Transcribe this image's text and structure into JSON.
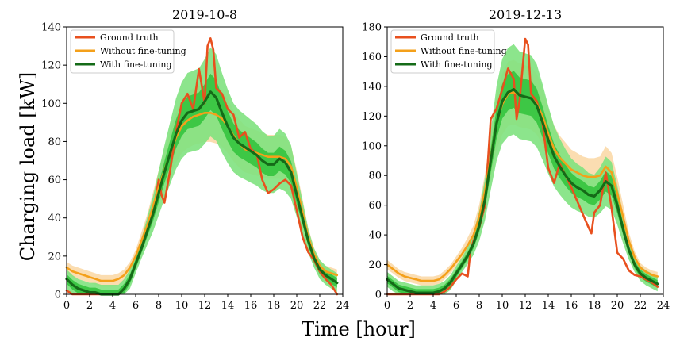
{
  "figure": {
    "ylabel": "Charging load [kW]",
    "xlabel": "Time [hour]"
  },
  "legend_entries": [
    "Ground truth",
    "Without fine-tuning",
    "With fine-tuning"
  ],
  "colors": {
    "ground_truth": "#e8501e",
    "without_ft_line": "#f4a01a",
    "without_ft_band": "#fbd9a9",
    "with_ft_line": "#156b18",
    "with_ft_band_outer": "#7fe27f",
    "with_ft_band_inner": "#2fc23a"
  },
  "chart_data": [
    {
      "type": "line",
      "title": "2019-10-8",
      "xlabel": "Time [hour]",
      "ylabel": "Charging load [kW]",
      "xlim": [
        0,
        24
      ],
      "ylim": [
        0,
        140
      ],
      "xticks": [
        0,
        2,
        4,
        6,
        8,
        10,
        12,
        14,
        16,
        18,
        20,
        22,
        24
      ],
      "yticks": [
        0,
        20,
        40,
        60,
        80,
        100,
        120,
        140
      ],
      "legend_position": "top-left",
      "series": [
        {
          "name": "Ground truth",
          "x": [
            0,
            0.5,
            1,
            1.5,
            2,
            2.5,
            3,
            3.5,
            4,
            4.5,
            5,
            5.5,
            6,
            6.5,
            7,
            7.5,
            8,
            8.25,
            8.5,
            9,
            9.5,
            10,
            10.5,
            11,
            11.5,
            12,
            12.25,
            12.5,
            12.75,
            13,
            13.5,
            14,
            14.5,
            15,
            15.5,
            16,
            16.5,
            17,
            17.5,
            18,
            18.5,
            19,
            19.5,
            20,
            20.5,
            21,
            21.5,
            22,
            22.5,
            23,
            23.5
          ],
          "y": [
            2,
            0,
            0,
            0,
            0,
            0,
            0,
            0,
            0,
            0,
            3,
            8,
            16,
            24,
            33,
            42,
            60,
            52,
            48,
            65,
            85,
            100,
            105,
            97,
            118,
            100,
            130,
            134,
            128,
            108,
            105,
            97,
            94,
            82,
            85,
            76,
            74,
            60,
            53,
            55,
            58,
            60,
            57,
            44,
            30,
            22,
            18,
            12,
            8,
            5,
            0
          ]
        },
        {
          "name": "Without fine-tuning",
          "x": [
            0,
            0.5,
            1,
            1.5,
            2,
            2.5,
            3,
            3.5,
            4,
            4.5,
            5,
            5.5,
            6,
            6.5,
            7,
            7.5,
            8,
            8.5,
            9,
            9.5,
            10,
            10.5,
            11,
            11.5,
            12,
            12.5,
            13,
            13.5,
            14,
            14.5,
            15,
            15.5,
            16,
            16.5,
            17,
            17.5,
            18,
            18.5,
            19,
            19.5,
            20,
            20.5,
            21,
            21.5,
            22,
            22.5,
            23,
            23.5
          ],
          "y": [
            14,
            12,
            11,
            10,
            9,
            8,
            7,
            7,
            7,
            8,
            10,
            14,
            20,
            28,
            36,
            46,
            56,
            65,
            74,
            82,
            88,
            91,
            93,
            94,
            95,
            95,
            94,
            92,
            88,
            83,
            79,
            76,
            75,
            74,
            73,
            72,
            72,
            72,
            71,
            67,
            56,
            43,
            30,
            21,
            15,
            12,
            11,
            10
          ]
        },
        {
          "name": "With fine-tuning",
          "x": [
            0,
            0.5,
            1,
            1.5,
            2,
            2.5,
            3,
            3.5,
            4,
            4.5,
            5,
            5.5,
            6,
            6.5,
            7,
            7.5,
            8,
            8.5,
            9,
            9.5,
            10,
            10.5,
            11,
            11.5,
            12,
            12.5,
            13,
            13.5,
            14,
            14.5,
            15,
            15.5,
            16,
            16.5,
            17,
            17.5,
            18,
            18.5,
            19,
            19.5,
            20,
            20.5,
            21,
            21.5,
            22,
            22.5,
            23,
            23.5
          ],
          "y": [
            8,
            5,
            3,
            2,
            1,
            1,
            0,
            0,
            0,
            0,
            3,
            8,
            16,
            24,
            33,
            42,
            53,
            64,
            74,
            84,
            91,
            95,
            96,
            97,
            101,
            106,
            103,
            95,
            88,
            82,
            79,
            77,
            75,
            73,
            70,
            68,
            68,
            71,
            69,
            64,
            52,
            40,
            28,
            19,
            13,
            10,
            8,
            6
          ]
        }
      ]
    },
    {
      "type": "line",
      "title": "2019-12-13",
      "xlabel": "Time [hour]",
      "ylabel": "Charging load [kW]",
      "xlim": [
        0,
        24
      ],
      "ylim": [
        0,
        180
      ],
      "xticks": [
        0,
        2,
        4,
        6,
        8,
        10,
        12,
        14,
        16,
        18,
        20,
        22,
        24
      ],
      "yticks": [
        0,
        20,
        40,
        60,
        80,
        100,
        120,
        140,
        160,
        180
      ],
      "legend_position": "top-left",
      "series": [
        {
          "name": "Ground truth",
          "x": [
            0,
            0.5,
            1,
            1.5,
            2,
            2.5,
            3,
            3.5,
            4,
            4.5,
            5,
            5.5,
            6,
            6.5,
            7,
            7.25,
            7.5,
            8,
            8.5,
            9,
            9.5,
            10,
            10.5,
            11,
            11.25,
            11.5,
            12,
            12.25,
            12.5,
            13,
            13.5,
            14,
            14.5,
            15,
            15.5,
            16,
            16.5,
            17,
            17.5,
            17.75,
            18,
            18.5,
            19,
            19.5,
            20,
            20.5,
            21,
            21.5,
            22,
            22.5,
            23,
            23.5
          ],
          "y": [
            0,
            0,
            0,
            0,
            0,
            0,
            0,
            0,
            0,
            0,
            2,
            5,
            10,
            14,
            12,
            30,
            36,
            45,
            60,
            118,
            125,
            138,
            152,
            145,
            118,
            130,
            172,
            168,
            135,
            130,
            115,
            85,
            75,
            88,
            80,
            72,
            63,
            54,
            45,
            41,
            55,
            60,
            82,
            58,
            28,
            24,
            16,
            13,
            12,
            10,
            8,
            5
          ]
        },
        {
          "name": "Without fine-tuning",
          "x": [
            0,
            0.5,
            1,
            1.5,
            2,
            2.5,
            3,
            3.5,
            4,
            4.5,
            5,
            5.5,
            6,
            6.5,
            7,
            7.5,
            8,
            8.5,
            9,
            9.5,
            10,
            10.5,
            11,
            11.5,
            12,
            12.5,
            13,
            13.5,
            14,
            14.5,
            15,
            15.5,
            16,
            16.5,
            17,
            17.5,
            18,
            18.5,
            19,
            19.5,
            20,
            20.5,
            21,
            21.5,
            22,
            22.5,
            23,
            23.5
          ],
          "y": [
            20,
            17,
            14,
            12,
            11,
            10,
            9,
            9,
            9,
            10,
            13,
            17,
            22,
            27,
            33,
            40,
            52,
            70,
            92,
            115,
            128,
            135,
            136,
            134,
            133,
            132,
            128,
            120,
            108,
            98,
            92,
            88,
            84,
            82,
            80,
            79,
            79,
            80,
            86,
            82,
            68,
            52,
            36,
            25,
            18,
            15,
            13,
            12
          ]
        },
        {
          "name": "With fine-tuning",
          "x": [
            0,
            0.5,
            1,
            1.5,
            2,
            2.5,
            3,
            3.5,
            4,
            4.5,
            5,
            5.5,
            6,
            6.5,
            7,
            7.5,
            8,
            8.5,
            9,
            9.5,
            10,
            10.5,
            11,
            11.5,
            12,
            12.5,
            13,
            13.5,
            14,
            14.5,
            15,
            15.5,
            16,
            16.5,
            17,
            17.5,
            18,
            18.5,
            19,
            19.5,
            20,
            20.5,
            21,
            21.5,
            22,
            22.5,
            23,
            23.5
          ],
          "y": [
            10,
            7,
            4,
            3,
            2,
            1,
            1,
            1,
            1,
            2,
            4,
            8,
            14,
            20,
            26,
            34,
            46,
            64,
            90,
            115,
            130,
            136,
            138,
            134,
            133,
            132,
            127,
            116,
            104,
            93,
            86,
            80,
            75,
            72,
            70,
            67,
            66,
            70,
            76,
            73,
            60,
            44,
            30,
            20,
            14,
            11,
            9,
            7
          ]
        }
      ]
    }
  ]
}
